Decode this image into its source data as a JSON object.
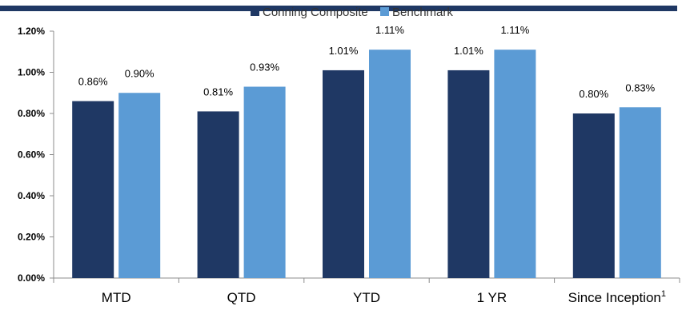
{
  "chart_data": {
    "type": "bar",
    "categories": [
      "MTD",
      "QTD",
      "YTD",
      "1 YR",
      "Since Inception"
    ],
    "category_superscripts": [
      "",
      "",
      "",
      "",
      "1"
    ],
    "series": [
      {
        "name": "Conning Composite",
        "values": [
          0.86,
          0.81,
          1.01,
          1.01,
          0.8
        ],
        "labels": [
          "0.86%",
          "0.81%",
          "1.01%",
          "1.01%",
          "0.80%"
        ],
        "color": "#1f3864"
      },
      {
        "name": "Benchmark",
        "values": [
          0.9,
          0.93,
          1.11,
          1.11,
          0.83
        ],
        "labels": [
          "0.90%",
          "0.93%",
          "1.11%",
          "1.11%",
          "0.83%"
        ],
        "color": "#5b9bd5"
      }
    ],
    "y_ticks": [
      "0.00%",
      "0.20%",
      "0.40%",
      "0.60%",
      "0.80%",
      "1.00%",
      "1.20%"
    ],
    "y_tick_values": [
      0,
      0.2,
      0.4,
      0.6,
      0.8,
      1.0,
      1.2
    ],
    "ylim": [
      0,
      1.2
    ],
    "grid": false,
    "legend_position": "top-center",
    "accent_color": "#1f3864"
  }
}
